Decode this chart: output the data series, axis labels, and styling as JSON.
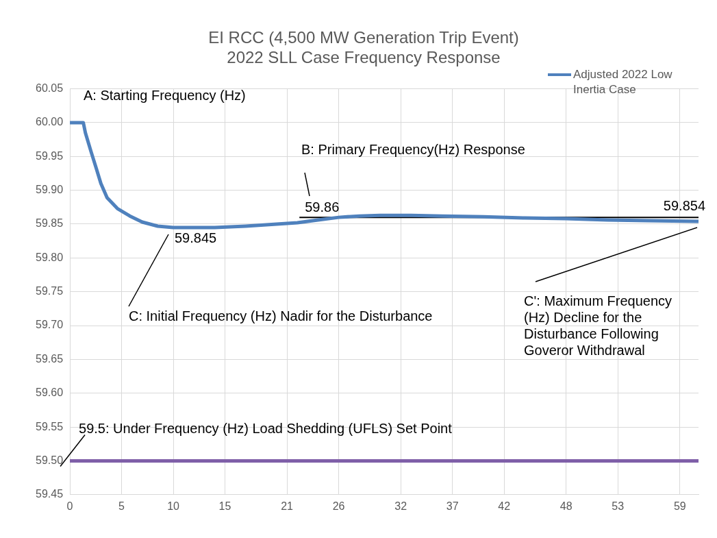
{
  "chart_data": {
    "type": "line",
    "title": "EI RCC (4,500 MW Generation Trip Event)\n2022 SLL Case Frequency Response",
    "xlim": [
      0,
      60.8
    ],
    "xticks": [
      0,
      5,
      10,
      15,
      21,
      26,
      32,
      37,
      42,
      48,
      53,
      59
    ],
    "ylim": [
      59.45,
      60.05
    ],
    "yticks": [
      {
        "value": 59.45,
        "label": "59.45"
      },
      {
        "value": 59.5,
        "label": "59.50"
      },
      {
        "value": 59.55,
        "label": "59.55"
      },
      {
        "value": 59.6,
        "label": "59.60"
      },
      {
        "value": 59.65,
        "label": "59.65"
      },
      {
        "value": 59.7,
        "label": "59.70"
      },
      {
        "value": 59.75,
        "label": "59.75"
      },
      {
        "value": 59.8,
        "label": "59.80"
      },
      {
        "value": 59.85,
        "label": "59.85"
      },
      {
        "value": 59.9,
        "label": "59.90"
      },
      {
        "value": 59.95,
        "label": "59.95"
      },
      {
        "value": 60,
        "label": "60.00"
      },
      {
        "value": 60.05,
        "label": "60.05"
      }
    ],
    "grid": true,
    "legend": "top right",
    "marker": "none",
    "line_style": "solid",
    "series": [
      {
        "name": "Adjusted 2022 Low Inertia Case",
        "color": "#4f81bd",
        "x": [
          0,
          1.3,
          1.5,
          2.05,
          2.6,
          3.0,
          3.6,
          4.6,
          5.8,
          7,
          8.5,
          10,
          12,
          14,
          17,
          20,
          22,
          24,
          26,
          28,
          30,
          33,
          36,
          40,
          44,
          48,
          52,
          56,
          60.8
        ],
        "values": [
          60,
          60,
          59.985,
          59.957,
          59.93,
          59.91,
          59.889,
          59.873,
          59.862,
          59.853,
          59.847,
          59.845,
          59.845,
          59.845,
          59.847,
          59.85,
          59.852,
          59.856,
          59.86,
          59.862,
          59.863,
          59.863,
          59.862,
          59.861,
          59.859,
          59.858,
          59.856,
          59.855,
          59.854
        ]
      },
      {
        "color": "#000000",
        "x": [
          22.2,
          60.8
        ],
        "values": [
          59.86,
          59.86
        ]
      }
    ],
    "ref_lines": [
      {
        "axis": "y",
        "value": 59.5,
        "label": "59.5: Under Frequency (Hz) Load Shedding (UFLS) Set Point",
        "color": "#7f5fa8"
      }
    ],
    "annotations": [
      "A: Starting Frequency (Hz)",
      "B: Primary Frequency(Hz) Response",
      "C: Initial Frequency (Hz) Nadir for the Disturbance",
      "C': Maximum Frequency (Hz) Decline for the Disturbance Following Goveror Withdrawal",
      {
        "text": "59.845",
        "x": 9.8,
        "y": 59.845
      },
      {
        "text": "59.86",
        "x": 22.2,
        "y": 59.86
      },
      {
        "text": "59.854",
        "x": 60.8,
        "y": 59.854
      }
    ]
  }
}
